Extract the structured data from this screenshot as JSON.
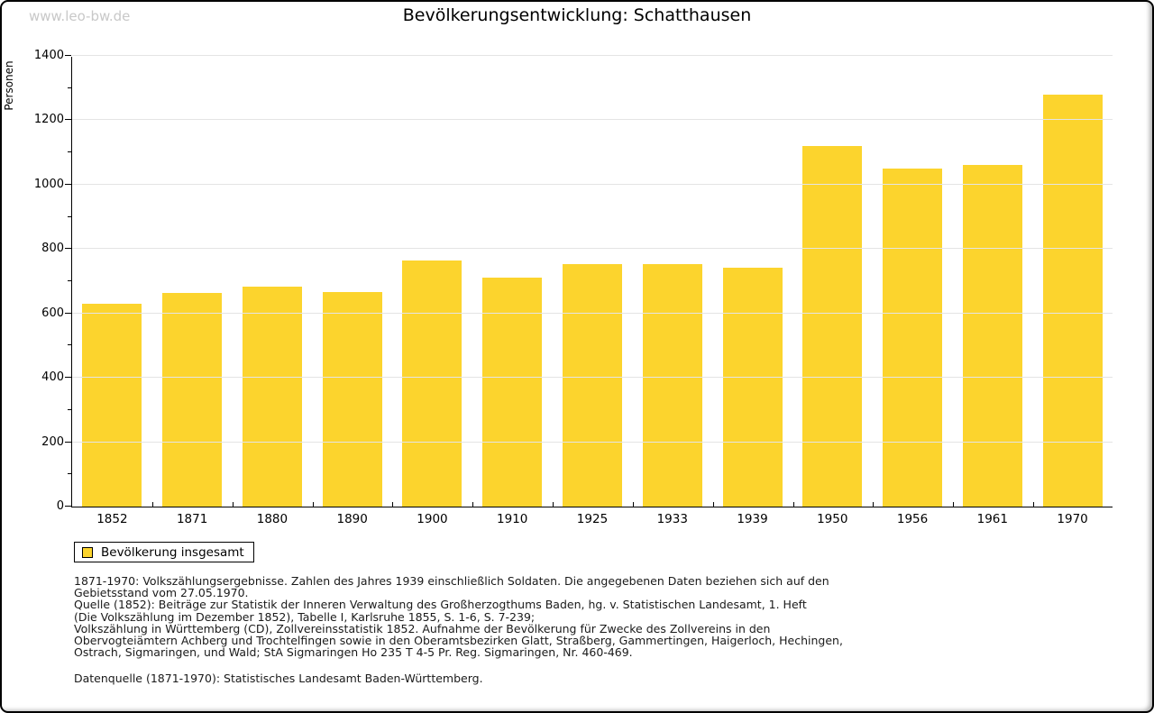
{
  "watermark": "www.leo-bw.de",
  "title": "Bevölkerungsentwicklung: Schatthausen",
  "chart_data": {
    "type": "bar",
    "title": "Bevölkerungsentwicklung: Schatthausen",
    "categories": [
      "1852",
      "1871",
      "1880",
      "1890",
      "1900",
      "1910",
      "1925",
      "1933",
      "1939",
      "1950",
      "1956",
      "1961",
      "1970"
    ],
    "values": [
      630,
      663,
      684,
      666,
      764,
      710,
      754,
      753,
      742,
      1120,
      1049,
      1061,
      1280
    ],
    "series": [
      {
        "name": "Bevölkerung insgesamt",
        "color": "#fcd42d"
      }
    ],
    "xlabel": "",
    "ylabel": "Personen",
    "ylim": [
      0,
      1400
    ],
    "ytick_step": 200,
    "yminor_step": 100,
    "grid": "horizontal-major",
    "legend_position": "bottom-left",
    "bar_color": "#fcd42d",
    "gridline_color": "#e4e4e4"
  },
  "legend": {
    "label": "Bevölkerung insgesamt",
    "swatch_color": "#fcd42d"
  },
  "notes": {
    "lines": [
      "1871-1970: Volkszählungsergebnisse. Zahlen des Jahres 1939 einschließlich Soldaten. Die angegebenen Daten beziehen sich auf den",
      "Gebietsstand vom 27.05.1970.",
      "Quelle (1852): Beiträge zur Statistik der Inneren Verwaltung des Großherzogthums Baden, hg. v. Statistischen Landesamt, 1. Heft",
      "(Die Volkszählung im Dezember 1852), Tabelle I, Karlsruhe 1855, S. 1-6, S. 7-239;",
      "Volkszählung in Württemberg (CD), Zollvereinsstatistik 1852. Aufnahme der Bevölkerung für Zwecke des Zollvereins in den",
      "Obervogteiämtern Achberg und Trochtelfingen sowie in den Oberamtsbezirken Glatt, Straßberg, Gammertingen, Haigerloch, Hechingen,",
      "Ostrach, Sigmaringen, und Wald; StA Sigmaringen Ho 235 T 4-5 Pr. Reg. Sigmaringen, Nr. 460-469."
    ]
  },
  "source_line": "Datenquelle (1871-1970): Statistisches Landesamt Baden-Württemberg."
}
